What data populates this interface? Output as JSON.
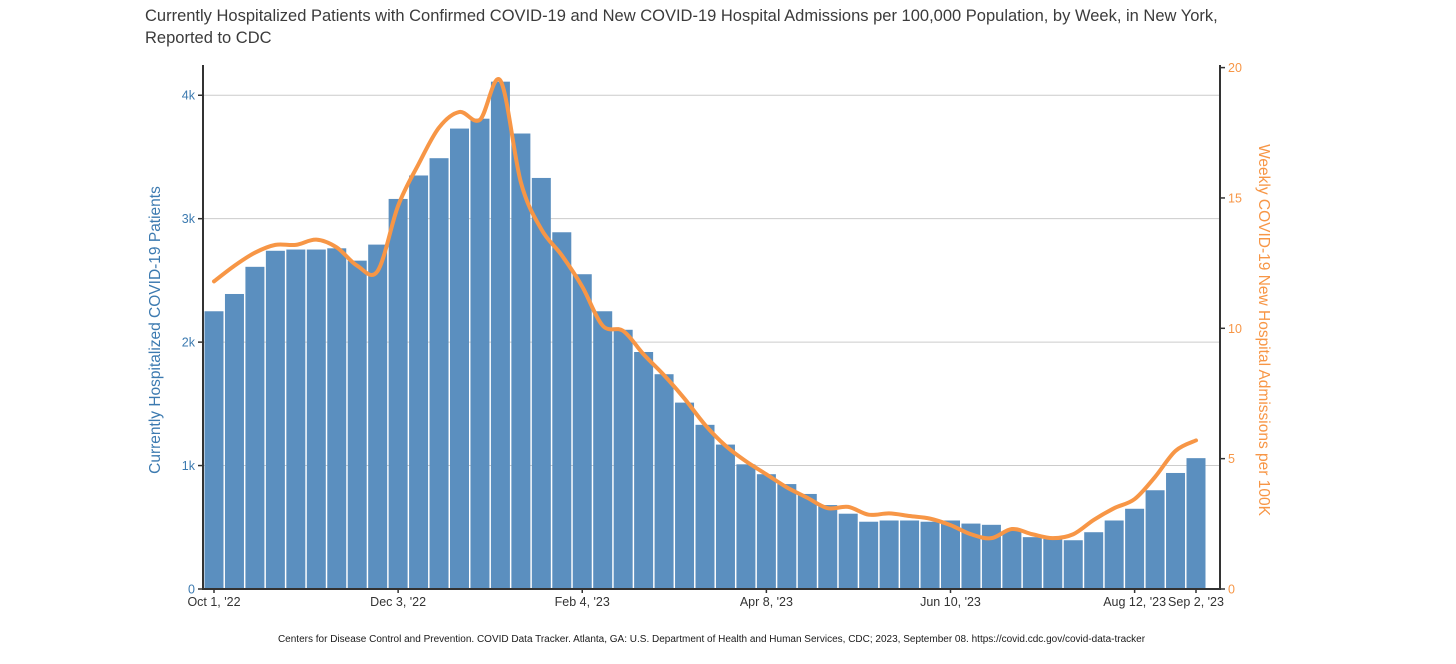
{
  "title": "Currently Hospitalized Patients with Confirmed COVID-19 and New COVID-19 Hospital Admissions per 100,000 Population, by Week, in New York, Reported to CDC",
  "footer": "Centers for Disease Control and Prevention. COVID Data Tracker. Atlanta, GA: U.S. Department of Health and Human Services, CDC; 2023, September 08. https://covid.cdc.gov/covid-data-tracker",
  "colors": {
    "bar": "#5b8fbf",
    "line": "#f79646",
    "left_axis_text": "#3c7ab0",
    "right_axis_text": "#f79646",
    "x_axis_text": "#333333",
    "axis_line": "#333333",
    "gridline": "#cccccc",
    "title_text": "#3b3b3b"
  },
  "chart_data": {
    "type": "bar+line dual-axis",
    "title": "Currently Hospitalized Patients with Confirmed COVID-19 and New COVID-19 Hospital Admissions per 100,000 Population, by Week, in New York, Reported to CDC",
    "categories": [
      "Oct 1, '22",
      "Oct 8, '22",
      "Oct 15, '22",
      "Oct 22, '22",
      "Oct 29, '22",
      "Nov 5, '22",
      "Nov 12, '22",
      "Nov 19, '22",
      "Nov 26, '22",
      "Dec 3, '22",
      "Dec 10, '22",
      "Dec 17, '22",
      "Dec 24, '22",
      "Dec 31, '22",
      "Jan 7, '23",
      "Jan 14, '23",
      "Jan 21, '23",
      "Jan 28, '23",
      "Feb 4, '23",
      "Feb 11, '23",
      "Feb 18, '23",
      "Feb 25, '23",
      "Mar 4, '23",
      "Mar 11, '23",
      "Mar 18, '23",
      "Mar 25, '23",
      "Apr 1, '23",
      "Apr 8, '23",
      "Apr 15, '23",
      "Apr 22, '23",
      "Apr 29, '23",
      "May 6, '23",
      "May 13, '23",
      "May 20, '23",
      "May 27, '23",
      "Jun 3, '23",
      "Jun 10, '23",
      "Jun 17, '23",
      "Jun 24, '23",
      "Jul 1, '23",
      "Jul 8, '23",
      "Jul 15, '23",
      "Jul 22, '23",
      "Jul 29, '23",
      "Aug 5, '23",
      "Aug 12, '23",
      "Aug 19, '23",
      "Aug 26, '23",
      "Sep 2, '23"
    ],
    "series": [
      {
        "name": "Currently Hospitalized COVID-19 Patients",
        "type": "bar",
        "axis": "left",
        "values": [
          2250,
          2390,
          2610,
          2740,
          2750,
          2750,
          2760,
          2660,
          2790,
          3160,
          3350,
          3490,
          3730,
          3810,
          4110,
          3690,
          3330,
          2890,
          2550,
          2250,
          2100,
          1920,
          1740,
          1510,
          1330,
          1170,
          1010,
          930,
          850,
          770,
          680,
          610,
          545,
          555,
          555,
          545,
          555,
          530,
          520,
          470,
          420,
          405,
          395,
          460,
          555,
          650,
          800,
          940,
          1060
        ]
      },
      {
        "name": "Weekly COVID-19 New Hospital Admissions per 100K",
        "type": "line",
        "axis": "right",
        "values": [
          11.8,
          12.4,
          12.9,
          13.2,
          13.2,
          13.4,
          13.1,
          12.4,
          12.2,
          14.7,
          16.3,
          17.7,
          18.3,
          18.0,
          19.5,
          15.6,
          13.8,
          12.8,
          11.6,
          10.1,
          9.9,
          9.0,
          8.2,
          7.3,
          6.3,
          5.5,
          4.9,
          4.4,
          3.9,
          3.5,
          3.1,
          3.15,
          2.85,
          2.9,
          2.8,
          2.7,
          2.45,
          2.1,
          1.95,
          2.3,
          2.1,
          1.95,
          2.1,
          2.65,
          3.1,
          3.45,
          4.3,
          5.3,
          5.7
        ]
      }
    ],
    "left_axis": {
      "title": "Currently Hospitalized COVID-19 Patients",
      "tick_labels": [
        "0",
        "1k",
        "2k",
        "3k",
        "4k"
      ],
      "tick_values": [
        0,
        1000,
        2000,
        3000,
        4000
      ],
      "range": [
        0,
        4245
      ]
    },
    "right_axis": {
      "title": "Weekly COVID-19 New Hospital Admissions per 100K",
      "tick_labels": [
        "0",
        "5",
        "10",
        "15",
        "20"
      ],
      "tick_values": [
        0,
        5,
        10,
        15,
        20
      ],
      "range": [
        0,
        20.1
      ]
    },
    "x_ticks": {
      "labels": [
        "Oct 1, '22",
        "Dec 3, '22",
        "Feb 4, '23",
        "Apr 8, '23",
        "Jun 10, '23",
        "Aug 12, '23",
        "Sep 2, '23"
      ],
      "indices": [
        0,
        9,
        18,
        27,
        36,
        45,
        48
      ]
    },
    "grid": "horizontal gridlines at left-axis ticks",
    "legend": "none",
    "xlabel": "",
    "ylabel_left": "Currently Hospitalized COVID-19 Patients",
    "ylabel_right": "Weekly COVID-19 New Hospital Admissions per 100K"
  }
}
